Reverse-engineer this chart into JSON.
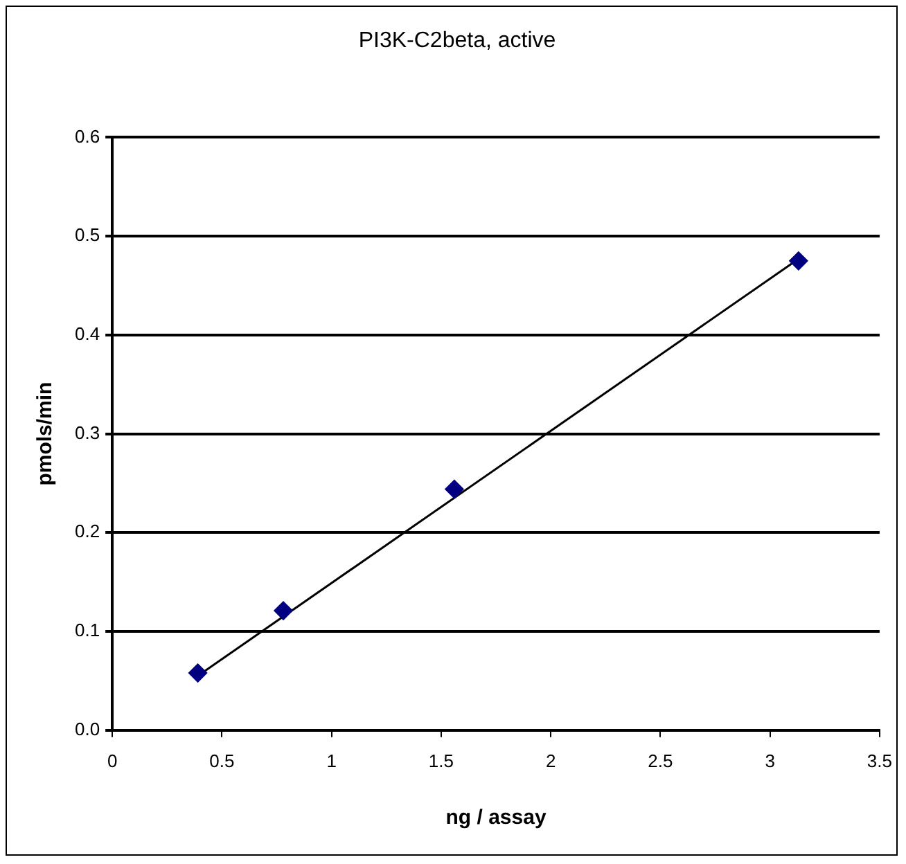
{
  "chart_data": {
    "type": "scatter",
    "title": "PI3K-C2beta, active",
    "xlabel": "ng / assay",
    "ylabel": "pmols/min",
    "xlim": [
      0,
      3.5
    ],
    "xticks": [
      0,
      0.5,
      1,
      1.5,
      2,
      2.5,
      3,
      3.5
    ],
    "ylim": [
      0,
      0.6
    ],
    "yticks": [
      {
        "value": 0,
        "label": "0.0"
      },
      0.1,
      0.2,
      0.3,
      0.4,
      0.5,
      0.6
    ],
    "grid": "y",
    "legend": false,
    "marker": "diamond",
    "series": [
      {
        "color": "#000080",
        "x": [
          0.39,
          0.78,
          1.56,
          3.13
        ],
        "values": [
          0.058,
          0.121,
          0.244,
          0.475
        ]
      },
      {
        "type": "line",
        "color": "#000000",
        "marker": "none",
        "line_style": "solid",
        "x": [
          0.39,
          3.13
        ],
        "values": [
          0.055,
          0.477
        ]
      }
    ]
  }
}
